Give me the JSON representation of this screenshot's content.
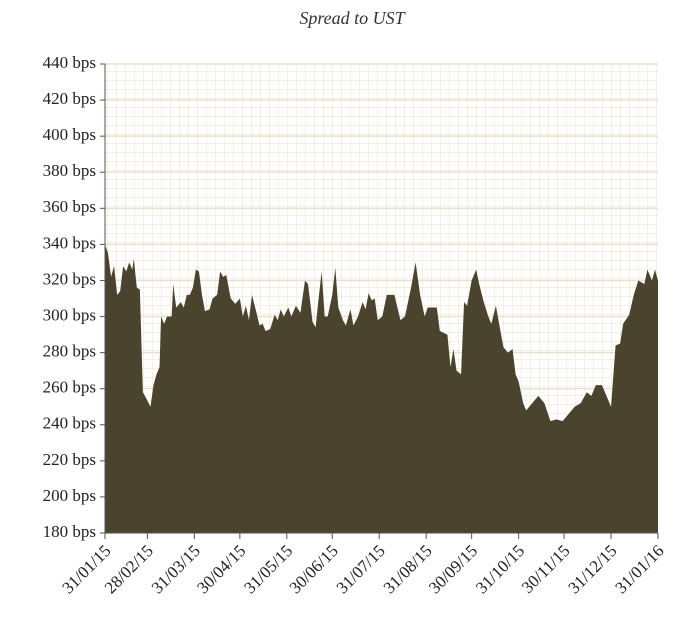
{
  "chart_data": {
    "type": "area",
    "title": "Spread to UST",
    "color": "#4a432d",
    "grid": true,
    "x": [
      "31/01/15",
      "02/02/15",
      "04/02/15",
      "06/02/15",
      "08/02/15",
      "10/02/15",
      "12/02/15",
      "14/02/15",
      "16/02/15",
      "18/02/15",
      "19/02/15",
      "21/02/15",
      "23/02/15",
      "25/02/15",
      "27/02/15",
      "02/03/15",
      "04/03/15",
      "06/03/15",
      "08/03/15",
      "09/03/15",
      "11/03/15",
      "13/03/15",
      "16/03/15",
      "17/03/15",
      "19/03/15",
      "22/03/15",
      "24/03/15",
      "26/03/15",
      "28/03/15",
      "30/03/15",
      "01/04/15",
      "03/04/15",
      "05/04/15",
      "07/04/15",
      "10/04/15",
      "12/04/15",
      "15/04/15",
      "17/04/15",
      "19/04/15",
      "21/04/15",
      "24/04/15",
      "27/04/15",
      "30/04/15",
      "02/05/15",
      "04/05/15",
      "06/05/15",
      "08/05/15",
      "11/05/15",
      "13/05/15",
      "15/05/15",
      "17/05/15",
      "20/05/15",
      "23/05/15",
      "25/05/15",
      "27/05/15",
      "29/05/15",
      "01/06/15",
      "03/06/15",
      "06/06/15",
      "09/06/15",
      "12/06/15",
      "14/06/15",
      "17/06/15",
      "19/06/15",
      "21/06/15",
      "23/06/15",
      "25/06/15",
      "27/06/15",
      "30/06/15",
      "02/07/15",
      "04/07/15",
      "07/07/15",
      "09/07/15",
      "12/07/15",
      "14/07/15",
      "17/07/15",
      "20/07/15",
      "22/07/15",
      "24/07/15",
      "26/07/15",
      "28/07/15",
      "30/07/15",
      "02/08/15",
      "05/08/15",
      "10/08/15",
      "14/08/15",
      "17/08/15",
      "21/08/15",
      "24/08/15",
      "27/08/15",
      "30/08/15",
      "01/09/15",
      "07/09/15",
      "09/09/15",
      "14/09/15",
      "16/09/15",
      "18/09/15",
      "20/09/15",
      "23/09/15",
      "25/09/15",
      "27/09/15",
      "30/09/15",
      "03/10/15",
      "05/10/15",
      "08/10/15",
      "11/10/15",
      "13/10/15",
      "16/10/15",
      "19/10/15",
      "21/10/15",
      "24/10/15",
      "27/10/15",
      "29/10/15",
      "31/10/15",
      "03/11/15",
      "05/11/15",
      "09/11/15",
      "13/11/15",
      "17/11/15",
      "21/11/15",
      "25/11/15",
      "29/11/15",
      "03/12/15",
      "07/12/15",
      "11/12/15",
      "15/12/15",
      "18/12/15",
      "21/12/15",
      "25/12/15",
      "28/12/15",
      "31/12/15",
      "03/01/16",
      "06/01/16",
      "08/01/16",
      "12/01/16",
      "15/01/16",
      "18/01/16",
      "22/01/16",
      "24/01/16",
      "27/01/16",
      "29/01/16",
      "31/01/16"
    ],
    "values": [
      340,
      335,
      322,
      328,
      312,
      314,
      328,
      325,
      330,
      326,
      332,
      316,
      315,
      258,
      255,
      250,
      262,
      268,
      272,
      300,
      296,
      300,
      300,
      318,
      305,
      308,
      305,
      312,
      312,
      316,
      326,
      325,
      312,
      303,
      304,
      310,
      312,
      325,
      322,
      323,
      310,
      307,
      310,
      300,
      306,
      298,
      312,
      302,
      295,
      296,
      292,
      293,
      301,
      298,
      304,
      300,
      305,
      300,
      306,
      302,
      320,
      318,
      297,
      294,
      310,
      325,
      300,
      300,
      312,
      327,
      305,
      298,
      295,
      304,
      295,
      300,
      308,
      304,
      313,
      309,
      310,
      298,
      300,
      312,
      312,
      298,
      300,
      316,
      330,
      312,
      300,
      305,
      305,
      292,
      290,
      272,
      282,
      270,
      268,
      308,
      306,
      320,
      326,
      318,
      308,
      300,
      296,
      306,
      292,
      283,
      280,
      282,
      268,
      264,
      252,
      248,
      252,
      256,
      252,
      242,
      243,
      242,
      246,
      250,
      252,
      258,
      256,
      262,
      262,
      256,
      250,
      284,
      285,
      296,
      301,
      312,
      320,
      318,
      326,
      320,
      326,
      320
    ],
    "xlim": [
      "31/01/15",
      "31/01/16"
    ],
    "xticks": [
      "31/01/15",
      "28/02/15",
      "31/03/15",
      "30/04/15",
      "31/05/15",
      "30/06/15",
      "31/07/15",
      "31/08/15",
      "30/09/15",
      "31/10/15",
      "30/11/15",
      "31/12/15",
      "31/01/16"
    ],
    "ylim": [
      180,
      440
    ],
    "yticks": [
      {
        "value": 180,
        "label": "180 bps"
      },
      {
        "value": 200,
        "label": "200 bps"
      },
      {
        "value": 220,
        "label": "220 bps"
      },
      {
        "value": 240,
        "label": "240 bps"
      },
      {
        "value": 260,
        "label": "260 bps"
      },
      {
        "value": 280,
        "label": "280 bps"
      },
      {
        "value": 300,
        "label": "300 bps"
      },
      {
        "value": 320,
        "label": "320 bps"
      },
      {
        "value": 340,
        "label": "340 bps"
      },
      {
        "value": 360,
        "label": "360 bps"
      },
      {
        "value": 380,
        "label": "380 bps"
      },
      {
        "value": 400,
        "label": "400 bps"
      },
      {
        "value": 420,
        "label": "420 bps"
      },
      {
        "value": 440,
        "label": "440 bps"
      }
    ]
  }
}
